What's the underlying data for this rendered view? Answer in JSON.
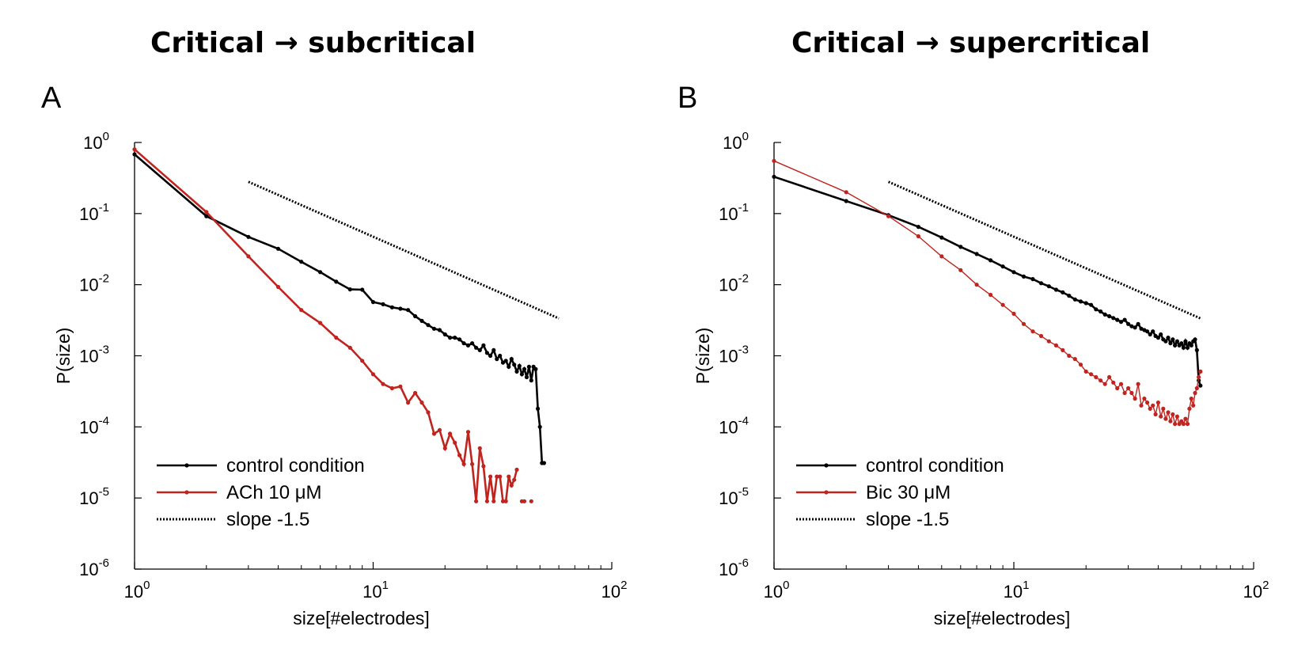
{
  "panels": [
    {
      "letter": "A",
      "title": "Critical → subcritical"
    },
    {
      "letter": "B",
      "title": "Critical → supercritical"
    }
  ],
  "colors": {
    "control": "#000000",
    "treatment": "#c0241f",
    "slope": "#000000"
  },
  "chart_data": [
    {
      "type": "line",
      "title": "Critical → subcritical",
      "panel_label": "A",
      "xlabel": "size[#electrodes]",
      "ylabel": "P(size)",
      "xscale": "log",
      "yscale": "log",
      "xlim": [
        1,
        100
      ],
      "ylim": [
        1e-06,
        1
      ],
      "xticks": [
        {
          "base": "10",
          "exp": "0"
        },
        {
          "base": "10",
          "exp": "1"
        },
        {
          "base": "10",
          "exp": "2"
        }
      ],
      "yticks": [
        {
          "base": "10",
          "exp": "0"
        },
        {
          "base": "10",
          "exp": "-1"
        },
        {
          "base": "10",
          "exp": "-2"
        },
        {
          "base": "10",
          "exp": "-3"
        },
        {
          "base": "10",
          "exp": "-4"
        },
        {
          "base": "10",
          "exp": "-5"
        },
        {
          "base": "10",
          "exp": "-6"
        }
      ],
      "legend_position": "bottom-left",
      "grid": false,
      "series": [
        {
          "name": "control condition",
          "x": [
            1,
            2,
            3,
            4,
            5,
            6,
            7,
            8,
            9,
            10,
            11,
            12,
            13,
            14,
            15,
            16,
            17,
            18,
            19,
            20,
            21,
            22,
            23,
            24,
            25,
            26,
            27,
            28,
            29,
            30,
            31,
            32,
            33,
            34,
            35,
            36,
            37,
            38,
            39,
            40,
            41,
            42,
            43,
            44,
            45,
            46,
            47,
            48,
            49,
            50,
            51,
            52
          ],
          "y": [
            0.68,
            0.092,
            0.047,
            0.032,
            0.021,
            0.015,
            0.011,
            0.0086,
            0.0085,
            0.0057,
            0.0053,
            0.0048,
            0.0046,
            0.0044,
            0.0036,
            0.0031,
            0.0027,
            0.0024,
            0.0023,
            0.002,
            0.0018,
            0.0018,
            0.0017,
            0.0015,
            0.0014,
            0.0015,
            0.0013,
            0.0012,
            0.0014,
            0.0011,
            0.001,
            0.0012,
            0.0009,
            0.001,
            0.0008,
            0.00085,
            0.0007,
            0.0009,
            0.00075,
            0.0006,
            0.00072,
            0.00055,
            0.00065,
            0.0005,
            0.0007,
            0.00045,
            0.0007,
            0.00065,
            0.00018,
            0.0001,
            3.1e-05,
            3.1e-05
          ]
        },
        {
          "name": "ACh 10 μM",
          "x": [
            1,
            2,
            3,
            4,
            5,
            6,
            7,
            8,
            9,
            10,
            11,
            12,
            13,
            14,
            15,
            16,
            17,
            18,
            19,
            20,
            21,
            22,
            23,
            24,
            25,
            26,
            27,
            28,
            29,
            30,
            31,
            32,
            33,
            34,
            35,
            36,
            37,
            38,
            39,
            40,
            41,
            42,
            43,
            44,
            45,
            46,
            47,
            48,
            49,
            50
          ],
          "y": [
            0.8,
            0.105,
            0.025,
            0.0093,
            0.0044,
            0.0029,
            0.0018,
            0.0013,
            0.00085,
            0.00055,
            0.0004,
            0.00035,
            0.00037,
            0.00022,
            0.0003,
            0.00022,
            0.00016,
            8e-05,
            9e-05,
            5e-05,
            8e-05,
            6e-05,
            4e-05,
            3e-05,
            8.5e-05,
            3e-05,
            9e-06,
            5e-05,
            2.8e-05,
            9e-06,
            2e-05,
            9e-06,
            2e-05,
            2e-05,
            9e-06,
            9e-06,
            2e-05,
            1.5e-05,
            1.8e-05,
            2.5e-05,
            null,
            9e-06,
            9e-06,
            null,
            null,
            9e-06,
            null,
            null,
            null,
            null
          ]
        },
        {
          "name": "slope -1.5",
          "style": "dotted",
          "x": [
            3,
            60
          ],
          "y": [
            0.28,
            0.00335
          ]
        }
      ]
    },
    {
      "type": "line",
      "title": "Critical → supercritical",
      "panel_label": "B",
      "xlabel": "size[#electrodes]",
      "ylabel": "P(size)",
      "xscale": "log",
      "yscale": "log",
      "xlim": [
        1,
        100
      ],
      "ylim": [
        1e-06,
        1
      ],
      "xticks": [
        {
          "base": "10",
          "exp": "0"
        },
        {
          "base": "10",
          "exp": "1"
        },
        {
          "base": "10",
          "exp": "2"
        }
      ],
      "yticks": [
        {
          "base": "10",
          "exp": "0"
        },
        {
          "base": "10",
          "exp": "-1"
        },
        {
          "base": "10",
          "exp": "-2"
        },
        {
          "base": "10",
          "exp": "-3"
        },
        {
          "base": "10",
          "exp": "-4"
        },
        {
          "base": "10",
          "exp": "-5"
        },
        {
          "base": "10",
          "exp": "-6"
        }
      ],
      "legend_position": "bottom-left",
      "grid": false,
      "series": [
        {
          "name": "control condition",
          "x": [
            1,
            2,
            3,
            4,
            5,
            6,
            7,
            8,
            9,
            10,
            11,
            12,
            13,
            14,
            15,
            16,
            17,
            18,
            19,
            20,
            21,
            22,
            23,
            24,
            25,
            26,
            27,
            28,
            29,
            30,
            31,
            32,
            33,
            34,
            35,
            36,
            37,
            38,
            39,
            40,
            41,
            42,
            43,
            44,
            45,
            46,
            47,
            48,
            49,
            50,
            51,
            52,
            53,
            54,
            55,
            56,
            57,
            58,
            59,
            60
          ],
          "y": [
            0.33,
            0.15,
            0.095,
            0.065,
            0.046,
            0.034,
            0.027,
            0.022,
            0.018,
            0.015,
            0.013,
            0.012,
            0.0105,
            0.0095,
            0.0085,
            0.0078,
            0.007,
            0.0062,
            0.0058,
            0.0055,
            0.0052,
            0.0045,
            0.0042,
            0.0038,
            0.0036,
            0.0034,
            0.0032,
            0.003,
            0.0032,
            0.0028,
            0.0026,
            0.0025,
            0.0028,
            0.0024,
            0.0023,
            0.0022,
            0.002,
            0.0022,
            0.0019,
            0.0018,
            0.002,
            0.0017,
            0.0016,
            0.0018,
            0.0015,
            0.0017,
            0.0014,
            0.0016,
            0.0014,
            0.0015,
            0.0013,
            0.0016,
            0.0013,
            0.0015,
            0.0014,
            0.0016,
            0.0017,
            0.0012,
            0.00045,
            0.00038
          ]
        },
        {
          "name": "Bic 30 μM",
          "x": [
            1,
            2,
            3,
            4,
            5,
            6,
            7,
            8,
            9,
            10,
            11,
            12,
            13,
            14,
            15,
            16,
            17,
            18,
            19,
            20,
            21,
            22,
            23,
            24,
            25,
            26,
            27,
            28,
            29,
            30,
            31,
            32,
            33,
            34,
            35,
            36,
            37,
            38,
            39,
            40,
            41,
            42,
            43,
            44,
            45,
            46,
            47,
            48,
            49,
            50,
            51,
            52,
            53,
            54,
            55,
            56,
            57,
            58,
            59,
            60
          ],
          "y": [
            0.55,
            0.2,
            0.092,
            0.048,
            0.025,
            0.016,
            0.01,
            0.0072,
            0.0052,
            0.0039,
            0.0028,
            0.0022,
            0.0019,
            0.0016,
            0.0014,
            0.0012,
            0.001,
            0.0009,
            0.00075,
            0.0006,
            0.00055,
            0.0005,
            0.00045,
            0.0004,
            0.0005,
            0.00042,
            0.00035,
            0.0004,
            0.0003,
            0.00035,
            0.0003,
            0.00025,
            0.0004,
            0.0002,
            0.00025,
            0.00022,
            0.00018,
            0.0002,
            0.00015,
            0.00022,
            0.00014,
            0.00018,
            0.00013,
            0.00016,
            0.00012,
            0.00015,
            0.00011,
            0.00014,
            0.00011,
            0.00012,
            0.00011,
            0.00013,
            0.00011,
            0.00018,
            0.00025,
            0.0002,
            0.0003,
            0.00035,
            0.0005,
            0.0006
          ]
        },
        {
          "name": "slope -1.5",
          "style": "dotted",
          "x": [
            3,
            60
          ],
          "y": [
            0.28,
            0.00335
          ]
        }
      ]
    }
  ]
}
